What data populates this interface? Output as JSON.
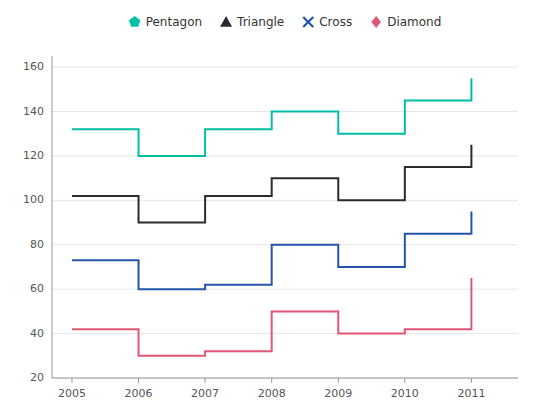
{
  "chart_data": {
    "type": "step",
    "x": [
      2005,
      2006,
      2007,
      2008,
      2009,
      2010,
      2011
    ],
    "xlim": [
      2004.7,
      2011.7
    ],
    "xticks": [
      2005,
      2006,
      2007,
      2008,
      2009,
      2010,
      2011
    ],
    "ylim": [
      20,
      165
    ],
    "yticks": [
      20,
      40,
      60,
      80,
      100,
      120,
      140,
      160
    ],
    "grid": true,
    "legend": "top",
    "series": [
      {
        "name": "Pentagon",
        "color": "#00BFA5",
        "marker": "pentagon",
        "values": [
          132,
          120,
          132,
          140,
          130,
          145,
          155
        ]
      },
      {
        "name": "Triangle",
        "color": "#2b2b2b",
        "marker": "triangle",
        "values": [
          102,
          90,
          102,
          110,
          100,
          115,
          125
        ]
      },
      {
        "name": "Cross",
        "color": "#2255aa",
        "marker": "cross",
        "values": [
          73,
          60,
          62,
          80,
          70,
          85,
          95
        ]
      },
      {
        "name": "Diamond",
        "color": "#e05578",
        "marker": "diamond",
        "values": [
          42,
          30,
          32,
          50,
          40,
          42,
          65
        ]
      }
    ]
  }
}
